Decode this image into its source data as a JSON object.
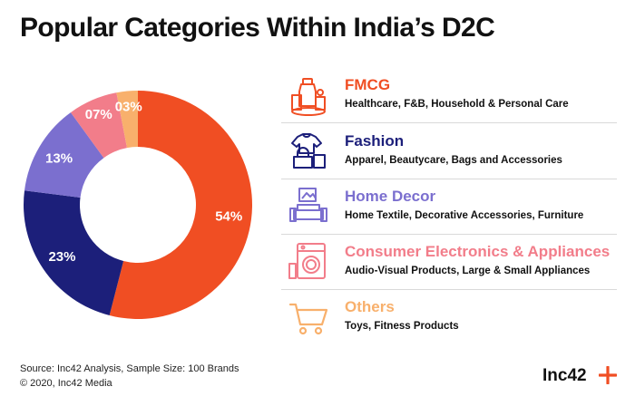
{
  "title": "Popular Categories Within India’s D2C",
  "chart_data": {
    "type": "pie",
    "style": "donut",
    "categories": [
      "FMCG",
      "Fashion",
      "Home Decor",
      "Consumer Electronics & Appliances",
      "Others"
    ],
    "values": [
      54,
      23,
      13,
      7,
      3
    ],
    "value_labels": [
      "54%",
      "23%",
      "13%",
      "07%",
      "03%"
    ],
    "colors": [
      "#f04e23",
      "#1c1f7a",
      "#7b6fcf",
      "#f27d8a",
      "#f8b06c"
    ]
  },
  "legend": [
    {
      "name": "FMCG",
      "desc": "Healthcare, F&B, Household & Personal Care",
      "color": "#f04e23",
      "icon": "fmcg-products-icon"
    },
    {
      "name": "Fashion",
      "desc": "Apparel, Beautycare, Bags and Accessories",
      "color": "#1c1f7a",
      "icon": "clothing-bag-icon"
    },
    {
      "name": "Home Decor",
      "desc": "Home Textile, Decorative Accessories, Furniture",
      "color": "#7b6fcf",
      "icon": "sofa-frame-icon"
    },
    {
      "name": "Consumer Electronics & Appliances",
      "desc": "Audio-Visual Products, Large & Small Appliances",
      "color": "#f27d8a",
      "icon": "washing-machine-icon"
    },
    {
      "name": "Others",
      "desc": "Toys, Fitness Products",
      "color": "#f8b06c",
      "icon": "shopping-cart-icon"
    }
  ],
  "footer": {
    "source": "Source: Inc42 Analysis, Sample Size: 100 Brands",
    "copyright": "© 2020, Inc42 Media"
  },
  "brand": {
    "name": "Inc42",
    "accent": "#f04e23"
  }
}
